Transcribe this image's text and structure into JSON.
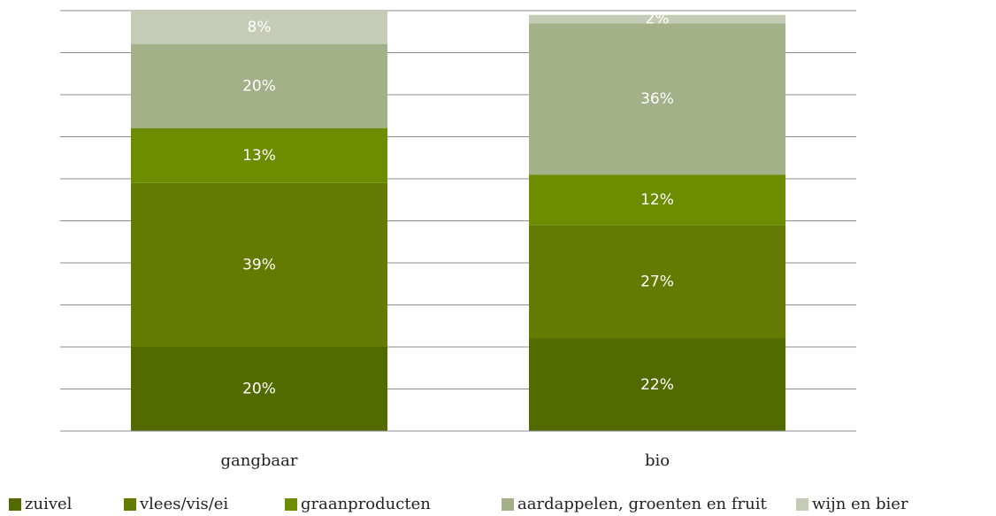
{
  "chart_data": {
    "type": "stacked-bar",
    "categories": [
      "gangbaar",
      "bio"
    ],
    "series": [
      {
        "name": "zuivel",
        "color": "#526a00",
        "values": [
          20,
          22
        ],
        "value_labels": [
          "20%",
          "22%"
        ]
      },
      {
        "name": "vlees/vis/ei",
        "color": "#627b00",
        "values": [
          39,
          27
        ],
        "value_labels": [
          "39%",
          "27%"
        ]
      },
      {
        "name": "graanproducten",
        "color": "#6e8c00",
        "values": [
          13,
          12
        ],
        "value_labels": [
          "13%",
          "12%"
        ]
      },
      {
        "name": "aardappelen, groenten en fruit",
        "color": "#a3b088",
        "values": [
          20,
          36
        ],
        "value_labels": [
          "20%",
          "36%"
        ]
      },
      {
        "name": "wijn en bier",
        "color": "#c5ccb5",
        "values": [
          8,
          2
        ],
        "value_labels": [
          "8%",
          "2%"
        ]
      }
    ],
    "ylim": [
      0,
      100
    ],
    "yticks": [
      0,
      10,
      20,
      30,
      40,
      50,
      60,
      70,
      80,
      90,
      100
    ],
    "grid": true,
    "legend": "bottom"
  }
}
